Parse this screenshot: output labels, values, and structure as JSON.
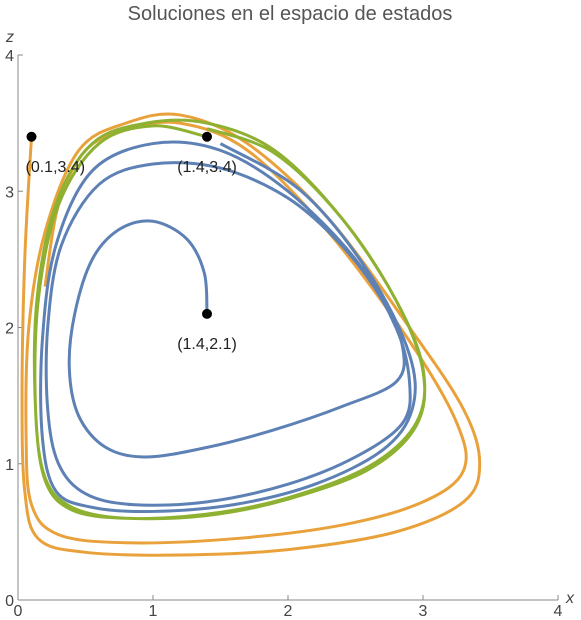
{
  "chart_data": {
    "type": "line",
    "title": "Soluciones en el espacio de estados",
    "xlabel": "x",
    "ylabel": "z",
    "xlim": [
      0,
      4
    ],
    "ylim": [
      0,
      4
    ],
    "xticks": [
      0,
      1,
      2,
      3,
      4
    ],
    "yticks": [
      0,
      1,
      2,
      3,
      4
    ],
    "series": [
      {
        "color": "#e9a23b",
        "x": [
          0.1,
          0.05,
          0.03,
          0.05,
          0.15,
          0.5,
          1.2,
          2.0,
          2.8,
          3.3,
          3.42,
          3.3,
          2.9,
          2.3,
          1.7,
          1.2,
          0.8,
          0.45,
          0.2,
          0.08,
          0.06,
          0.1,
          0.3,
          0.8,
          1.6,
          2.4,
          3.0,
          3.3,
          3.25,
          2.9,
          2.3,
          1.7,
          1.2,
          0.8,
          0.5,
          0.3,
          0.2
        ],
        "values": [
          3.4,
          2.5,
          1.5,
          0.8,
          0.45,
          0.35,
          0.33,
          0.37,
          0.5,
          0.72,
          1.0,
          1.4,
          2.0,
          2.8,
          3.35,
          3.56,
          3.5,
          3.3,
          2.7,
          2.0,
          1.2,
          0.7,
          0.48,
          0.42,
          0.45,
          0.55,
          0.72,
          0.95,
          1.3,
          1.9,
          2.7,
          3.3,
          3.5,
          3.45,
          3.3,
          2.9,
          2.3
        ]
      },
      {
        "color": "#5e81b5",
        "x": [
          1.4,
          1.38,
          1.25,
          1.0,
          0.75,
          0.55,
          0.42,
          0.38,
          0.45,
          0.65,
          0.95,
          1.4,
          1.9,
          2.4,
          2.8,
          2.85,
          2.7,
          2.4,
          2.0,
          1.5,
          1.0,
          0.6,
          0.32,
          0.22,
          0.22,
          0.3,
          0.5,
          0.85,
          1.4,
          2.0,
          2.5,
          2.85,
          2.9,
          2.8,
          2.5,
          2.0,
          1.5,
          1.0,
          0.55,
          0.28,
          0.18,
          0.18,
          0.28,
          0.55,
          1.0,
          1.6,
          2.2,
          2.7,
          2.92,
          2.9,
          2.6,
          2.1,
          1.5
        ],
        "values": [
          2.1,
          2.4,
          2.65,
          2.78,
          2.72,
          2.5,
          2.1,
          1.7,
          1.35,
          1.12,
          1.05,
          1.12,
          1.25,
          1.42,
          1.6,
          1.85,
          2.2,
          2.6,
          2.95,
          3.17,
          3.2,
          3.05,
          2.6,
          2.0,
          1.4,
          1.0,
          0.78,
          0.7,
          0.72,
          0.85,
          1.05,
          1.3,
          1.6,
          2.0,
          2.5,
          3.0,
          3.3,
          3.35,
          3.15,
          2.6,
          1.9,
          1.2,
          0.8,
          0.68,
          0.65,
          0.7,
          0.85,
          1.1,
          1.4,
          1.8,
          2.4,
          3.0,
          3.35
        ]
      },
      {
        "color": "#8fb131",
        "x": [
          1.4,
          1.0,
          0.6,
          0.3,
          0.15,
          0.13,
          0.2,
          0.4,
          0.8,
          1.4,
          2.0,
          2.6,
          2.95,
          3.0,
          2.8,
          2.4,
          1.9,
          1.4,
          0.95,
          0.55,
          0.28,
          0.14,
          0.13,
          0.2,
          0.4,
          0.8,
          1.4,
          2.0,
          2.6,
          2.95,
          3.0,
          2.8,
          2.4,
          1.9,
          1.4
        ],
        "values": [
          3.4,
          3.48,
          3.35,
          2.9,
          2.2,
          1.4,
          0.9,
          0.68,
          0.6,
          0.63,
          0.75,
          0.98,
          1.3,
          1.7,
          2.2,
          2.8,
          3.3,
          3.5,
          3.5,
          3.35,
          2.9,
          2.2,
          1.4,
          0.88,
          0.66,
          0.6,
          0.62,
          0.74,
          0.96,
          1.28,
          1.68,
          2.2,
          2.8,
          3.28,
          3.46
        ]
      }
    ],
    "points": [
      {
        "text": "(0.1,3.4)",
        "x": 0.1,
        "y": 3.4
      },
      {
        "text": "(1.4,3.4)",
        "x": 1.4,
        "y": 3.4
      },
      {
        "text": "(1.4,2.1)",
        "x": 1.4,
        "y": 2.1
      }
    ]
  }
}
